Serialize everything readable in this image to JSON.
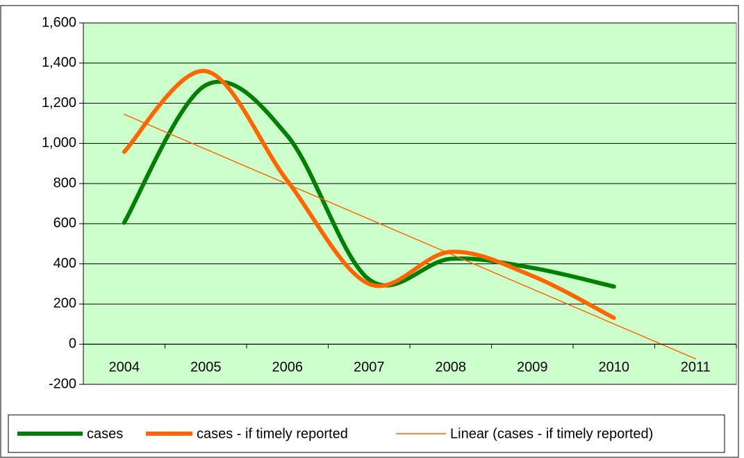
{
  "chart_data": {
    "type": "line",
    "categories": [
      "2004",
      "2005",
      "2006",
      "2007",
      "2008",
      "2009",
      "2010",
      "2011"
    ],
    "series": [
      {
        "name": "cases",
        "color": "#008000",
        "width": 6,
        "smooth": true,
        "values": [
          605,
          1290,
          1038,
          322,
          425,
          380,
          287,
          null
        ]
      },
      {
        "name": "cases - if timely reported",
        "color": "#ff6600",
        "width": 6,
        "smooth": true,
        "values": [
          958,
          1360,
          813,
          300,
          460,
          340,
          131,
          null
        ]
      },
      {
        "name": "Linear (cases - if timely reported)",
        "color": "#ff6600",
        "width": 1.5,
        "smooth": false,
        "values": [
          1145,
          971,
          797,
          623,
          449,
          275,
          101,
          -73
        ]
      }
    ],
    "ylim": [
      -200,
      1600
    ],
    "yticks": [
      -200,
      0,
      200,
      400,
      600,
      800,
      {
        "value": 1000,
        "label": "1,000"
      },
      {
        "value": 1200,
        "label": "1,200"
      },
      {
        "value": 1400,
        "label": "1,400"
      },
      {
        "value": 1600,
        "label": "1,600"
      }
    ],
    "grid": true,
    "background": "#ccffcc",
    "legend": "bottom"
  }
}
